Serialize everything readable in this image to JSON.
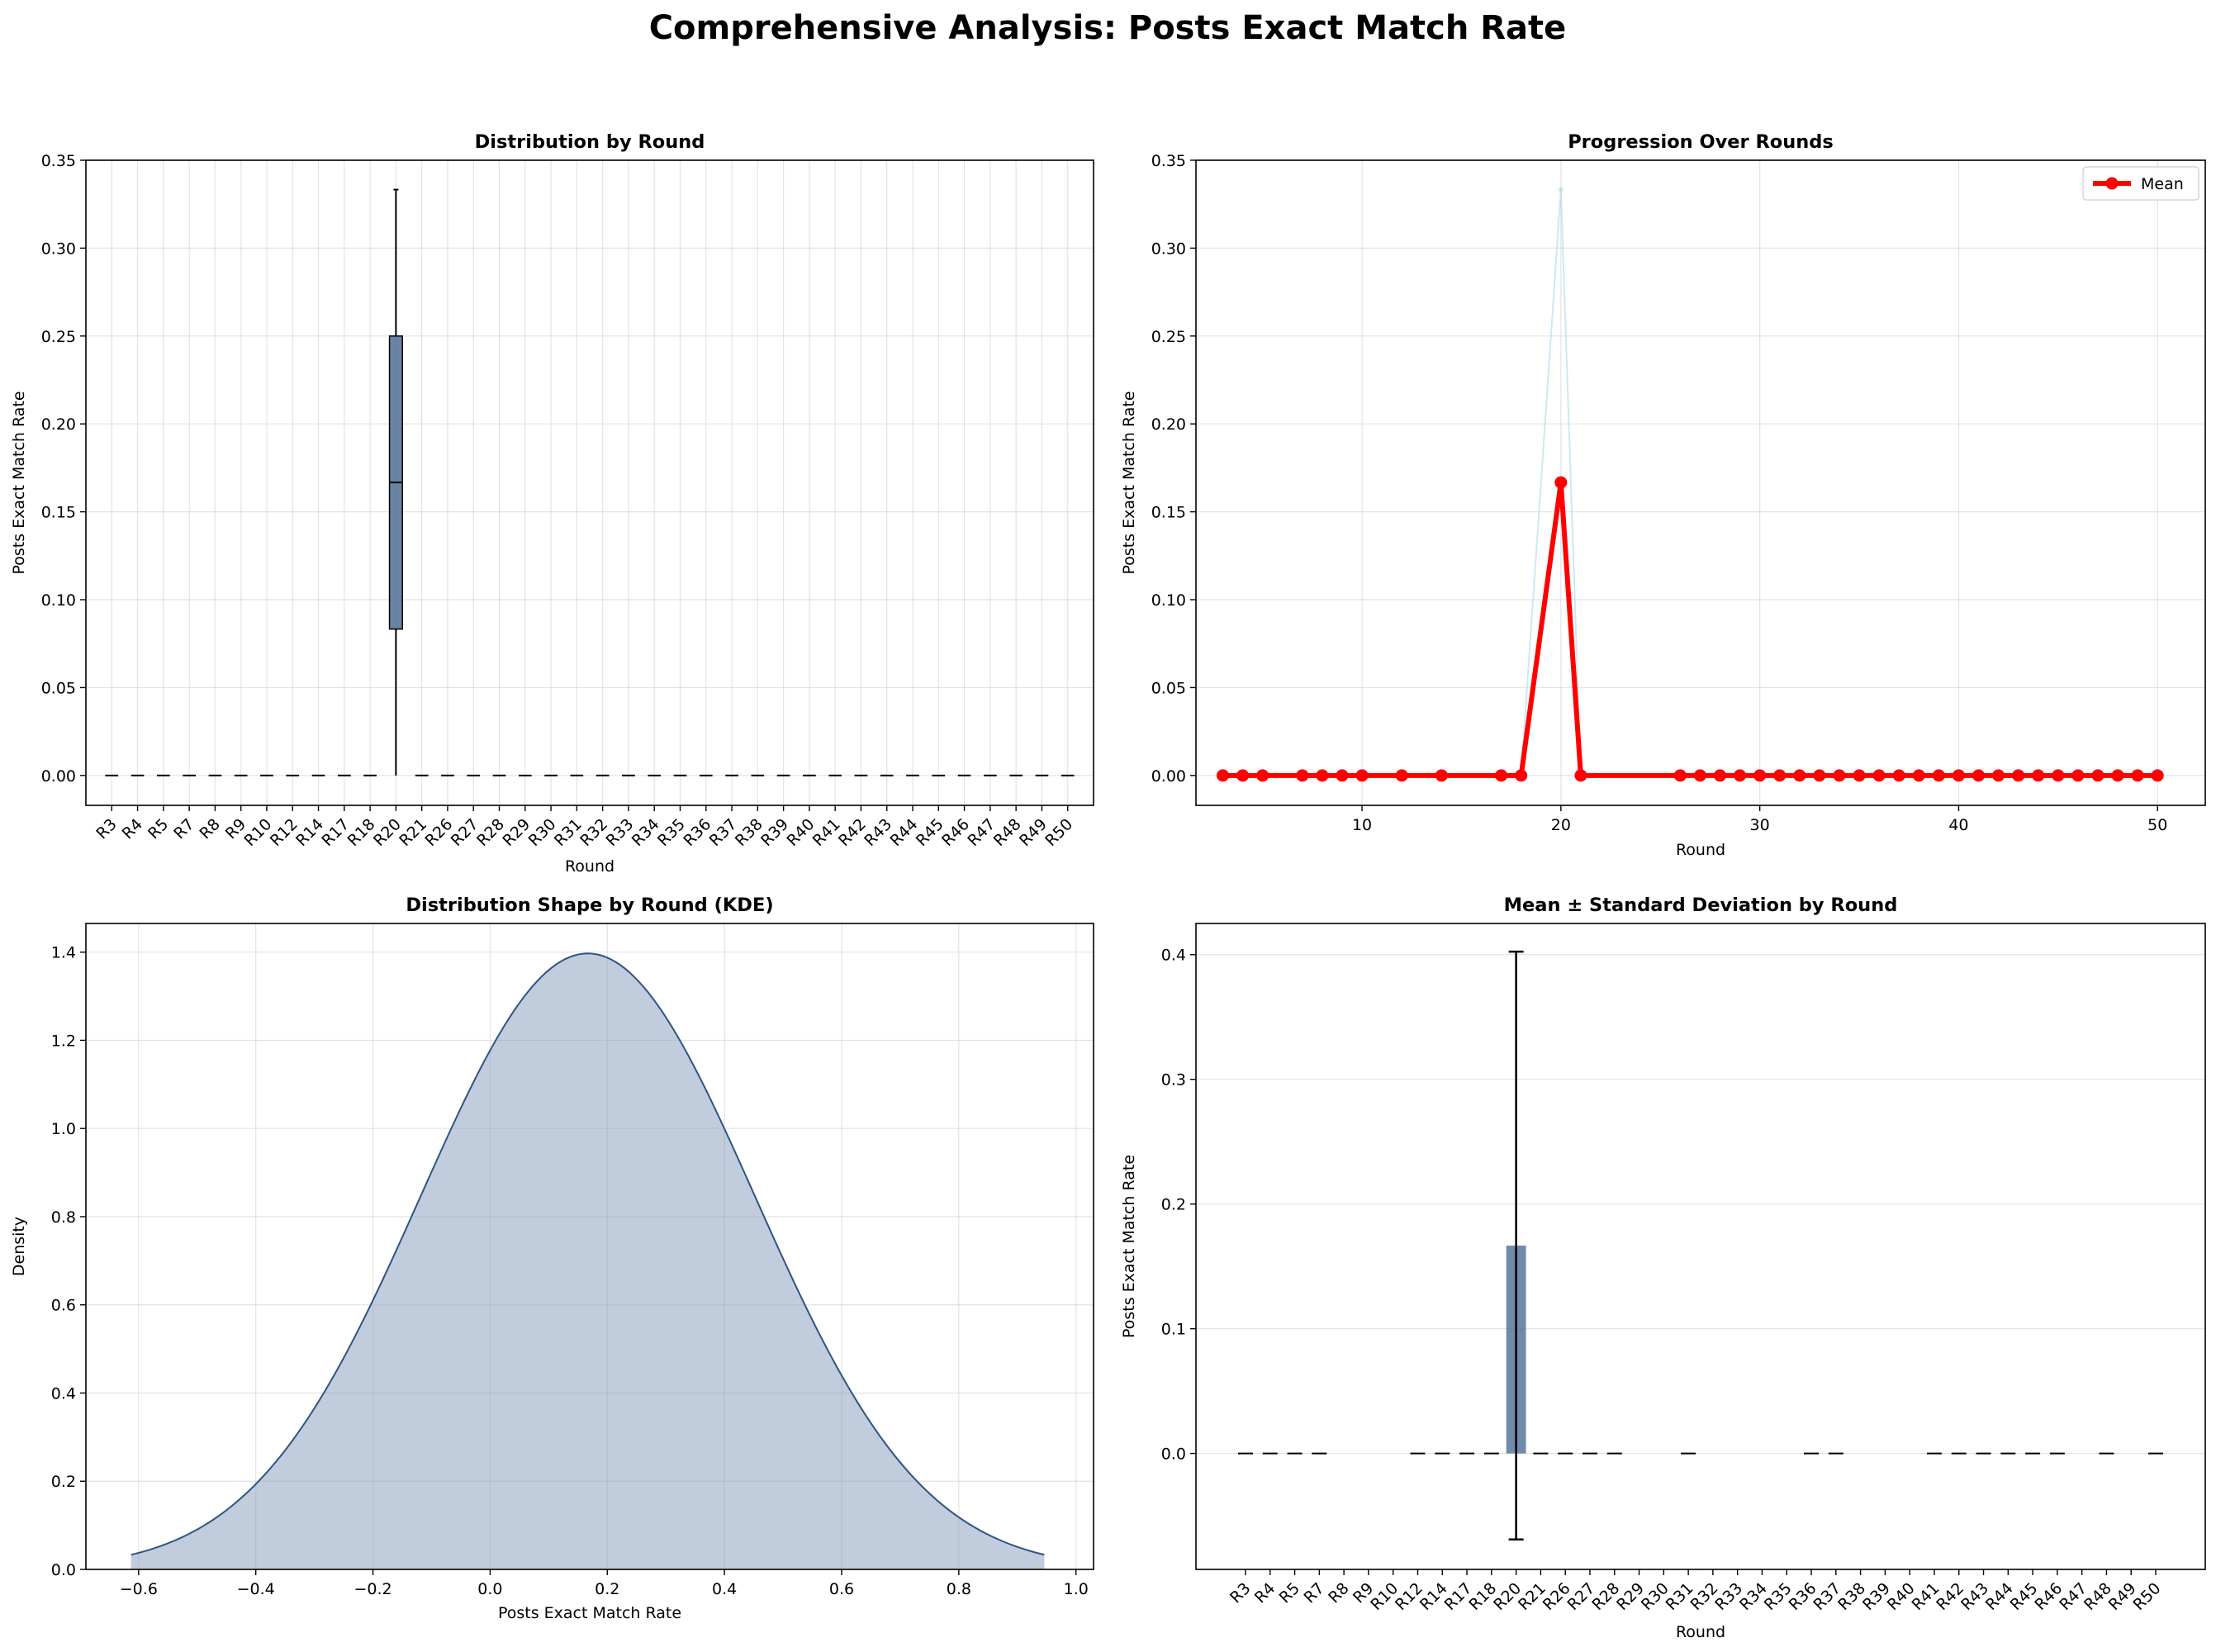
{
  "figure": {
    "title": "Comprehensive Analysis: Posts Exact Match Rate"
  },
  "colors": {
    "box": "#4f6d94",
    "mean_line": "#ff0000",
    "light_line": "#add8e6",
    "kde_fill": "#8ea3bf",
    "kde_line": "#2d5485",
    "bar": "#4f6d94"
  },
  "chart_data": [
    {
      "id": "box",
      "type": "box",
      "title": "Distribution by Round",
      "xlabel": "Round",
      "ylabel": "Posts Exact Match Rate",
      "ylim": [
        -0.017,
        0.35
      ],
      "yticks": [
        0.0,
        0.05,
        0.1,
        0.15,
        0.2,
        0.25,
        0.3,
        0.35
      ],
      "grid": true,
      "categories": [
        "R3",
        "R4",
        "R5",
        "R7",
        "R8",
        "R9",
        "R10",
        "R12",
        "R14",
        "R17",
        "R18",
        "R20",
        "R21",
        "R26",
        "R27",
        "R28",
        "R29",
        "R30",
        "R31",
        "R32",
        "R33",
        "R34",
        "R35",
        "R36",
        "R37",
        "R38",
        "R39",
        "R40",
        "R41",
        "R42",
        "R43",
        "R44",
        "R45",
        "R46",
        "R47",
        "R48",
        "R49",
        "R50"
      ],
      "boxes": [
        {
          "category": "R20",
          "min": 0.0,
          "q1": 0.0833,
          "median": 0.1667,
          "q3": 0.25,
          "max": 0.3333
        }
      ],
      "flat_value": 0.0
    },
    {
      "id": "line",
      "type": "line",
      "title": "Progression Over Rounds",
      "xlabel": "Round",
      "ylabel": "Posts Exact Match Rate",
      "xlim": [
        1.65,
        52.4
      ],
      "ylim": [
        -0.017,
        0.35
      ],
      "xticks": [
        10,
        20,
        30,
        40,
        50
      ],
      "yticks": [
        0.0,
        0.05,
        0.1,
        0.15,
        0.2,
        0.25,
        0.3,
        0.35
      ],
      "grid": true,
      "legend": {
        "position": "top-right",
        "entries": [
          "Mean"
        ]
      },
      "series": [
        {
          "name": "Mean",
          "x": [
            3,
            4,
            5,
            7,
            8,
            9,
            10,
            12,
            14,
            17,
            18,
            20,
            21,
            26,
            27,
            28,
            29,
            30,
            31,
            32,
            33,
            34,
            35,
            36,
            37,
            38,
            39,
            40,
            41,
            42,
            43,
            44,
            45,
            46,
            47,
            48,
            49,
            50
          ],
          "y": [
            0,
            0,
            0,
            0,
            0,
            0,
            0,
            0,
            0,
            0,
            0,
            0.1667,
            0,
            0,
            0,
            0,
            0,
            0,
            0,
            0,
            0,
            0,
            0,
            0,
            0,
            0,
            0,
            0,
            0,
            0,
            0,
            0,
            0,
            0,
            0,
            0,
            0,
            0
          ]
        },
        {
          "x": [
            18,
            20,
            21
          ],
          "y": [
            0,
            0.3333,
            0
          ]
        }
      ]
    },
    {
      "id": "kde",
      "type": "area",
      "title": "Distribution Shape by Round (KDE)",
      "xlabel": "Posts Exact Match Rate",
      "ylabel": "Density",
      "xlim": [
        -0.69,
        1.03
      ],
      "ylim": [
        0,
        1.465
      ],
      "xticks": [
        -0.6,
        -0.4,
        -0.2,
        0.0,
        0.2,
        0.4,
        0.6,
        0.8,
        1.0
      ],
      "yticks": [
        0.0,
        0.2,
        0.4,
        0.6,
        0.8,
        1.0,
        1.2,
        1.4
      ],
      "grid": true,
      "curve": {
        "x_range": [
          -0.613,
          0.946
        ],
        "mean": 0.1667,
        "sd": 0.285,
        "peak": 1.397
      }
    },
    {
      "id": "bar",
      "type": "bar",
      "title": "Mean ± Standard Deviation by Round",
      "xlabel": "Round",
      "ylabel": "Posts Exact Match Rate",
      "ylim": [
        -0.093,
        0.425
      ],
      "yticks": [
        0.0,
        0.1,
        0.2,
        0.3,
        0.4
      ],
      "grid": true,
      "categories": [
        "R3",
        "R4",
        "R5",
        "R7",
        "R8",
        "R9",
        "R10",
        "R12",
        "R14",
        "R17",
        "R18",
        "R20",
        "R21",
        "R26",
        "R27",
        "R28",
        "R29",
        "R30",
        "R31",
        "R32",
        "R33",
        "R34",
        "R35",
        "R36",
        "R37",
        "R38",
        "R39",
        "R40",
        "R41",
        "R42",
        "R43",
        "R44",
        "R45",
        "R46",
        "R47",
        "R48",
        "R49",
        "R50"
      ],
      "values": [
        0,
        0,
        0,
        0,
        0,
        0,
        0,
        0,
        0,
        0,
        0,
        0.1667,
        0,
        0,
        0,
        0,
        0,
        0,
        0,
        0,
        0,
        0,
        0,
        0,
        0,
        0,
        0,
        0,
        0,
        0,
        0,
        0,
        0,
        0,
        0,
        0,
        0,
        0
      ],
      "std": [
        0,
        0,
        0,
        0,
        0,
        0,
        0,
        0,
        0,
        0,
        0,
        0.2357,
        0,
        0,
        0,
        0,
        0,
        0,
        0,
        0,
        0,
        0,
        0,
        0,
        0,
        0,
        0,
        0,
        0,
        0,
        0,
        0,
        0,
        0,
        0,
        0,
        0,
        0
      ],
      "zero_caps": [
        "R3",
        "R4",
        "R5",
        "R7",
        "R12",
        "R14",
        "R17",
        "R18",
        "R21",
        "R26",
        "R27",
        "R28",
        "R31",
        "R36",
        "R37",
        "R41",
        "R42",
        "R43",
        "R44",
        "R45",
        "R46",
        "R48",
        "R50"
      ]
    }
  ]
}
